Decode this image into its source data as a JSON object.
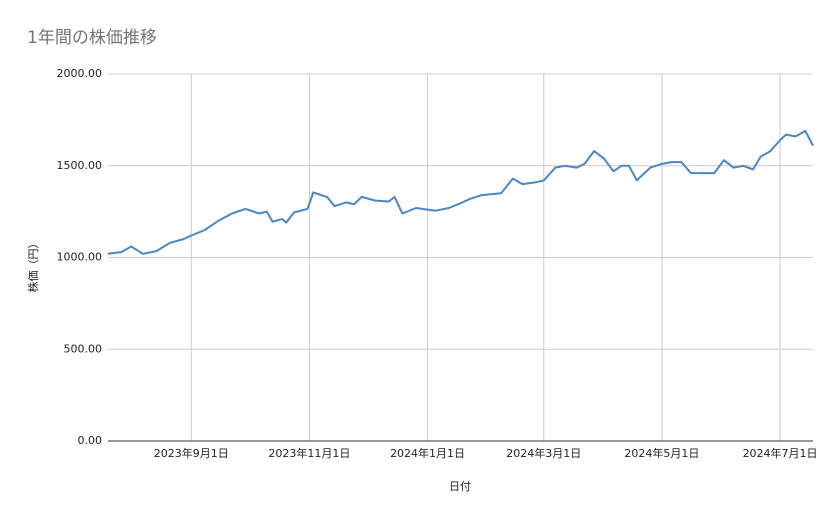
{
  "chart_data": {
    "type": "line",
    "title": "1年間の株価推移",
    "x_label": "日付",
    "y_label": "株価（円）",
    "x": [
      "2023-07-20",
      "2023-07-27",
      "2023-08-01",
      "2023-08-07",
      "2023-08-14",
      "2023-08-21",
      "2023-08-28",
      "2023-09-01",
      "2023-09-08",
      "2023-09-15",
      "2023-09-22",
      "2023-09-29",
      "2023-10-06",
      "2023-10-10",
      "2023-10-13",
      "2023-10-18",
      "2023-10-20",
      "2023-10-24",
      "2023-10-31",
      "2023-11-03",
      "2023-11-10",
      "2023-11-14",
      "2023-11-20",
      "2023-11-24",
      "2023-11-28",
      "2023-12-05",
      "2023-12-12",
      "2023-12-15",
      "2023-12-19",
      "2023-12-26",
      "2024-01-05",
      "2024-01-12",
      "2024-01-19",
      "2024-01-23",
      "2024-01-29",
      "2024-02-08",
      "2024-02-14",
      "2024-02-19",
      "2024-02-26",
      "2024-03-01",
      "2024-03-07",
      "2024-03-12",
      "2024-03-18",
      "2024-03-22",
      "2024-03-27",
      "2024-04-01",
      "2024-04-06",
      "2024-04-10",
      "2024-04-14",
      "2024-04-18",
      "2024-04-25",
      "2024-05-01",
      "2024-05-06",
      "2024-05-11",
      "2024-05-16",
      "2024-05-22",
      "2024-05-28",
      "2024-06-02",
      "2024-06-07",
      "2024-06-12",
      "2024-06-17",
      "2024-06-21",
      "2024-06-26",
      "2024-07-01",
      "2024-07-04",
      "2024-07-09",
      "2024-07-14",
      "2024-07-18"
    ],
    "series": [
      {
        "name": "株価",
        "color": "#4a86c8",
        "values": [
          1020,
          1030,
          1060,
          1020,
          1035,
          1080,
          1100,
          1120,
          1150,
          1200,
          1240,
          1265,
          1240,
          1250,
          1195,
          1210,
          1190,
          1245,
          1265,
          1355,
          1330,
          1280,
          1300,
          1290,
          1330,
          1310,
          1305,
          1330,
          1240,
          1270,
          1255,
          1270,
          1300,
          1320,
          1340,
          1350,
          1430,
          1400,
          1410,
          1420,
          1490,
          1500,
          1490,
          1510,
          1580,
          1540,
          1470,
          1500,
          1500,
          1420,
          1490,
          1510,
          1520,
          1520,
          1460,
          1460,
          1460,
          1530,
          1490,
          1500,
          1480,
          1550,
          1580,
          1640,
          1670,
          1660,
          1690,
          1610
        ]
      }
    ],
    "xlim": [
      "2023-07-20",
      "2024-07-18"
    ],
    "xticks": [
      {
        "value": "2023-09-01",
        "label": "2023年9月1日"
      },
      {
        "value": "2023-11-01",
        "label": "2023年11月1日"
      },
      {
        "value": "2024-01-01",
        "label": "2024年1月1日"
      },
      {
        "value": "2024-03-01",
        "label": "2024年3月1日"
      },
      {
        "value": "2024-05-01",
        "label": "2024年5月1日"
      },
      {
        "value": "2024-07-01",
        "label": "2024年7月1日"
      }
    ],
    "ylim": [
      0,
      2000
    ],
    "yticks": [
      {
        "value": 0,
        "label": "0.00"
      },
      {
        "value": 500,
        "label": "500.00"
      },
      {
        "value": 1000,
        "label": "1000.00"
      },
      {
        "value": 1500,
        "label": "1500.00"
      },
      {
        "value": 2000,
        "label": "2000.00"
      }
    ],
    "grid": true
  }
}
